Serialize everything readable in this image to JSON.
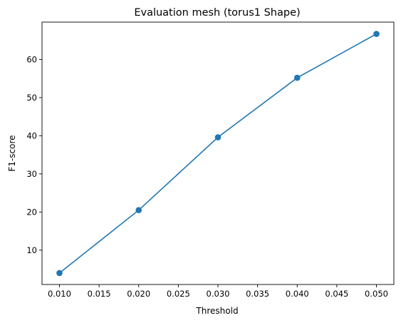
{
  "chart_data": {
    "type": "line",
    "title": "Evaluation mesh (torus1 Shape)",
    "xlabel": "Threshold",
    "ylabel": "F1-score",
    "x": [
      0.01,
      0.02,
      0.03,
      0.04,
      0.05
    ],
    "series": [
      {
        "values": [
          4.0,
          20.5,
          39.6,
          55.2,
          66.7
        ],
        "color": "#1f77b4",
        "marker": "circle"
      }
    ],
    "xticks": [
      "0.010",
      "0.015",
      "0.020",
      "0.025",
      "0.030",
      "0.035",
      "0.040",
      "0.045",
      "0.050"
    ],
    "yticks": [
      "10",
      "20",
      "30",
      "40",
      "50",
      "60"
    ],
    "xlim": [
      0.0078,
      0.0522
    ],
    "ylim": [
      1.0,
      69.8
    ],
    "grid": false,
    "legend": "none"
  }
}
